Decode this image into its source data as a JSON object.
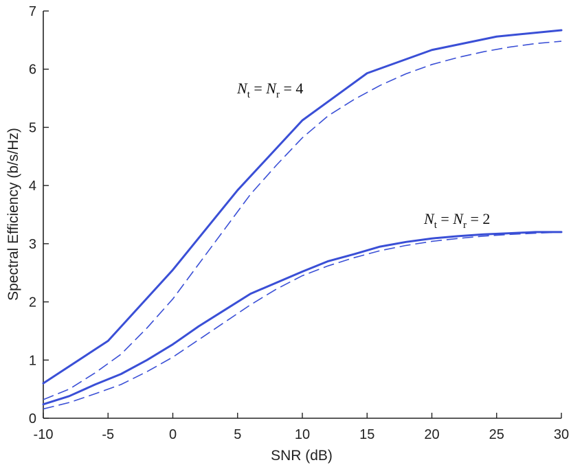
{
  "chart_data": {
    "type": "line",
    "title": "",
    "xlabel": "SNR (dB)",
    "ylabel": "Spectral Efficiency (b/s/Hz)",
    "xlim": [
      -10,
      30
    ],
    "ylim": [
      0,
      7
    ],
    "xticks": [
      -10,
      -5,
      0,
      5,
      10,
      15,
      20,
      25,
      30
    ],
    "yticks": [
      0,
      1,
      2,
      3,
      4,
      5,
      6,
      7
    ],
    "grid": false,
    "legend": "none",
    "colors": {
      "series": "#3a4fd6",
      "axis": "#222222"
    },
    "series": [
      {
        "style": "solid",
        "x": [
          -10,
          -5,
          0,
          5,
          10,
          15,
          20,
          25,
          30
        ],
        "values": [
          0.6,
          1.33,
          2.55,
          3.92,
          5.12,
          5.93,
          6.33,
          6.56,
          6.67
        ]
      },
      {
        "style": "dashed",
        "x": [
          -10,
          -8,
          -6,
          -4,
          -2,
          0,
          2,
          4,
          6,
          8,
          10,
          12,
          14,
          16,
          18,
          20,
          22,
          24,
          26,
          28,
          30
        ],
        "values": [
          0.32,
          0.5,
          0.78,
          1.1,
          1.55,
          2.05,
          2.65,
          3.25,
          3.85,
          4.35,
          4.82,
          5.2,
          5.48,
          5.72,
          5.92,
          6.08,
          6.2,
          6.3,
          6.38,
          6.44,
          6.48
        ]
      },
      {
        "style": "solid",
        "x": [
          -10,
          -8,
          -6,
          -4,
          -2,
          0,
          2,
          4,
          6,
          8,
          10,
          12,
          14,
          16,
          18,
          20,
          22,
          24,
          26,
          28,
          30
        ],
        "values": [
          0.24,
          0.38,
          0.58,
          0.76,
          1.0,
          1.27,
          1.58,
          1.86,
          2.14,
          2.33,
          2.52,
          2.7,
          2.82,
          2.95,
          3.03,
          3.09,
          3.13,
          3.16,
          3.18,
          3.2,
          3.2
        ]
      },
      {
        "style": "dashed",
        "x": [
          -10,
          -8,
          -6,
          -4,
          -2,
          0,
          2,
          4,
          6,
          8,
          10,
          12,
          14,
          16,
          18,
          20,
          22,
          24,
          26,
          28,
          30
        ],
        "values": [
          0.16,
          0.27,
          0.42,
          0.58,
          0.8,
          1.05,
          1.35,
          1.65,
          1.95,
          2.22,
          2.45,
          2.62,
          2.76,
          2.88,
          2.97,
          3.04,
          3.09,
          3.13,
          3.16,
          3.18,
          3.2
        ]
      }
    ],
    "annotations": [
      {
        "id": "nt4",
        "main1": "N",
        "sub1": "t",
        "equals1": " = ",
        "main2": "N",
        "sub2": "r",
        "equals2": " = ",
        "value": "4"
      },
      {
        "id": "nt2",
        "main1": "N",
        "sub1": "t",
        "equals1": " = ",
        "main2": "N",
        "sub2": "r",
        "equals2": " = ",
        "value": "2"
      }
    ]
  }
}
